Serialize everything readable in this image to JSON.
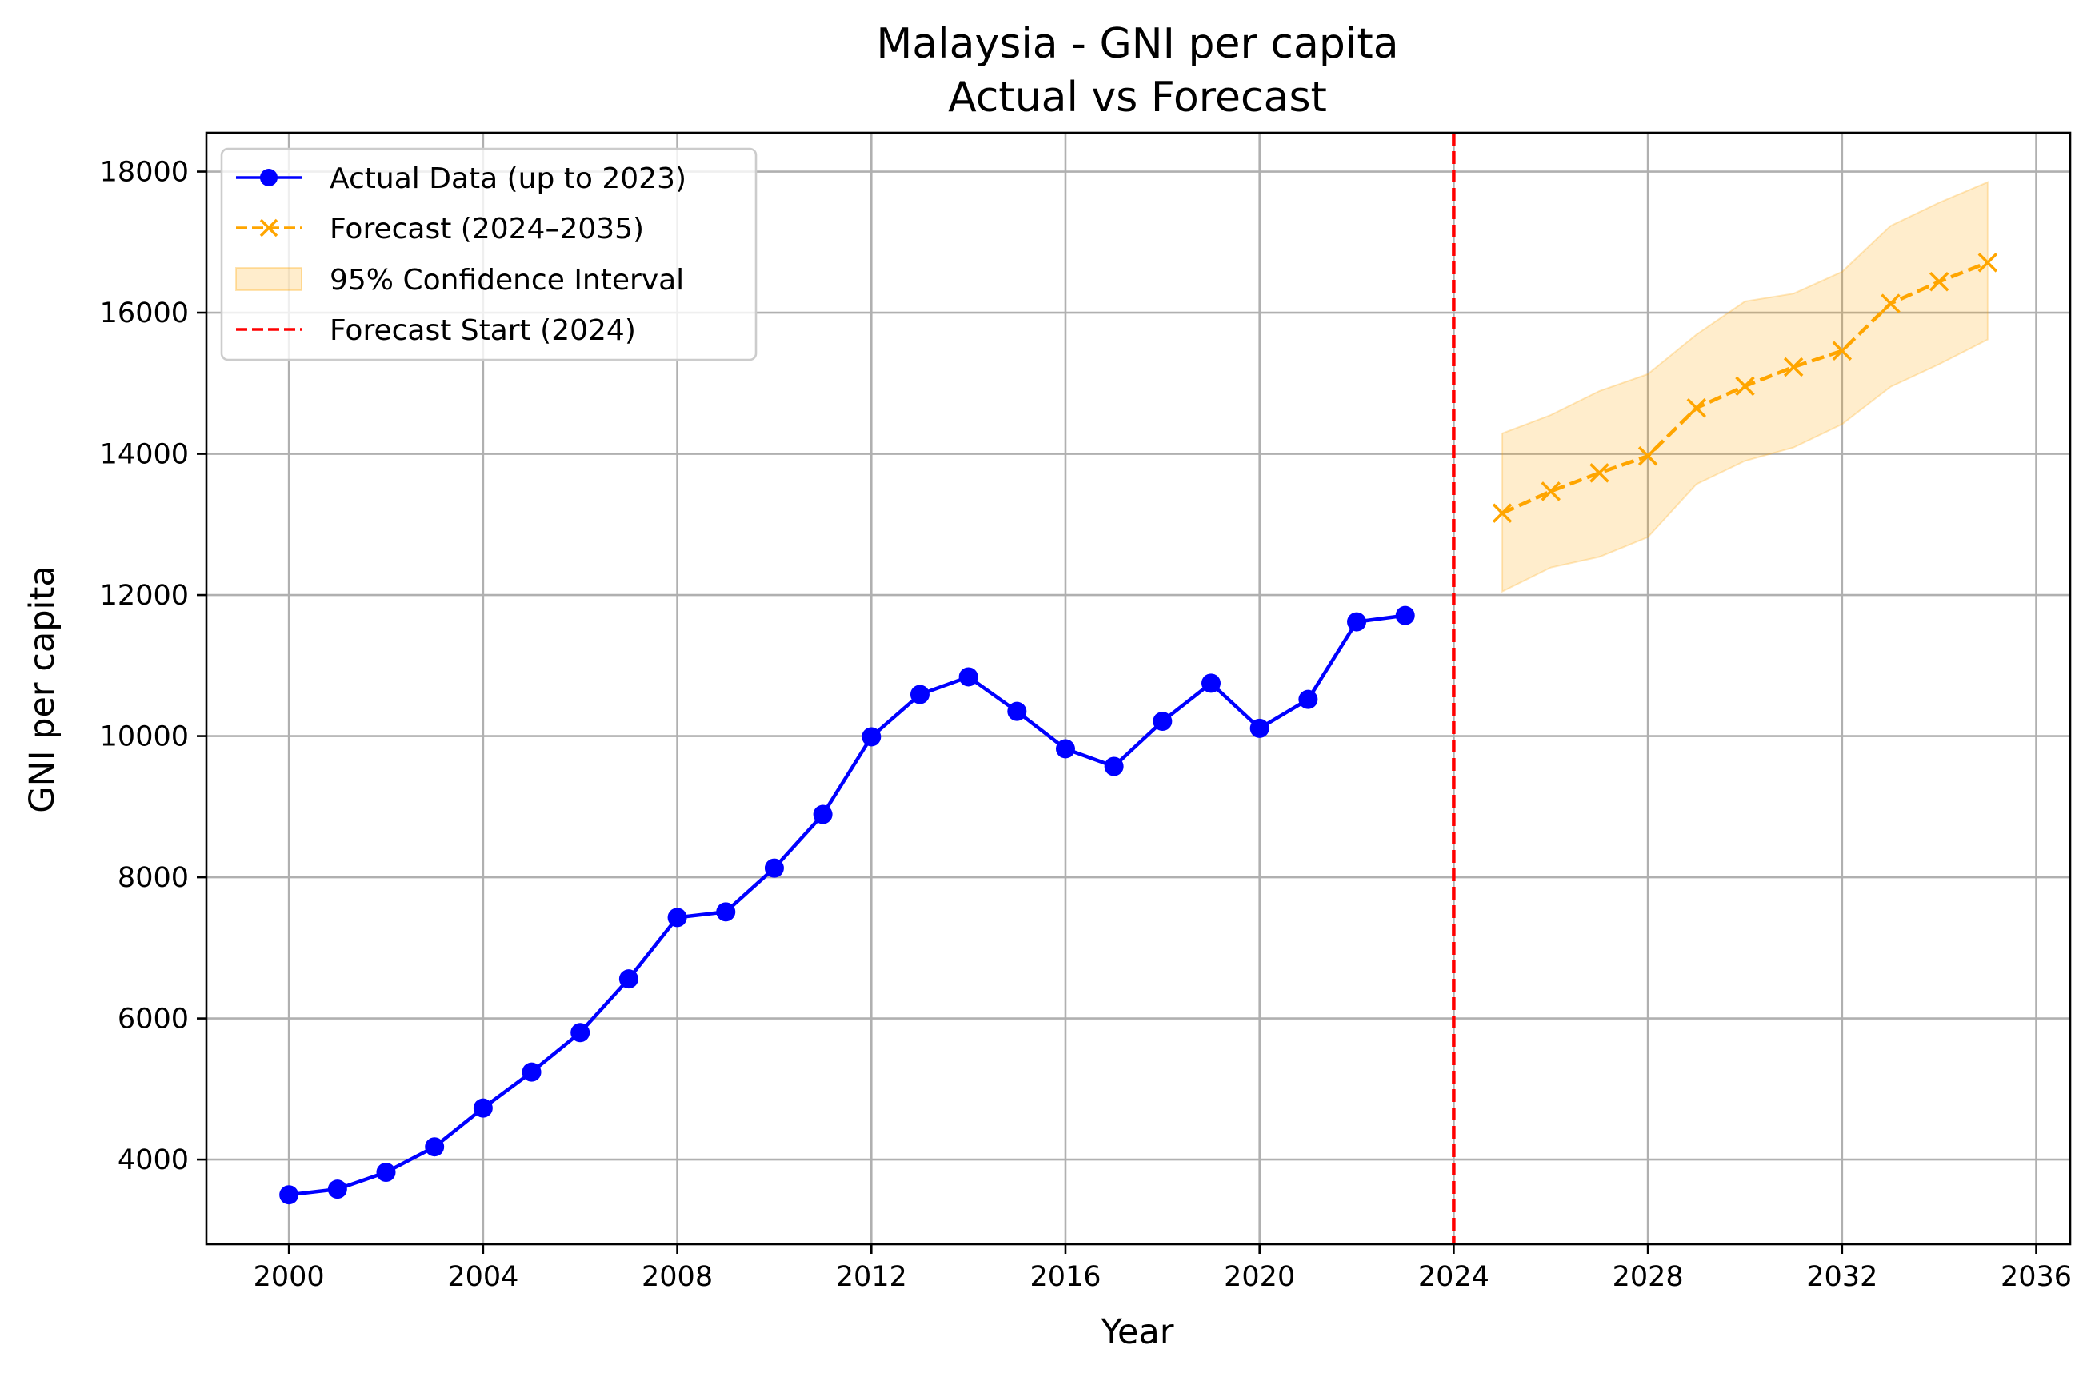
{
  "chart_data": {
    "type": "line",
    "title": "Malaysia - GNI per capita",
    "subtitle": "Actual vs Forecast",
    "xlabel": "Year",
    "ylabel": "GNI per capita",
    "xlim": [
      1998.3,
      2036.7
    ],
    "ylim": [
      2800,
      18550
    ],
    "x_ticks": [
      2000,
      2004,
      2008,
      2012,
      2016,
      2020,
      2024,
      2028,
      2032,
      2036
    ],
    "y_ticks": [
      4000,
      6000,
      8000,
      10000,
      12000,
      14000,
      16000,
      18000
    ],
    "grid": true,
    "legend_position": "top-left",
    "series": [
      {
        "name": "Actual Data (up to 2023)",
        "color": "#0000ff",
        "style": "solid",
        "marker": "circle",
        "x": [
          2000,
          2001,
          2002,
          2003,
          2004,
          2005,
          2006,
          2007,
          2008,
          2009,
          2010,
          2011,
          2012,
          2013,
          2014,
          2015,
          2016,
          2017,
          2018,
          2019,
          2020,
          2021,
          2022,
          2023
        ],
        "y": [
          3500,
          3580,
          3820,
          4180,
          4730,
          5240,
          5800,
          6560,
          7430,
          7510,
          8130,
          8890,
          9990,
          10590,
          10840,
          10350,
          9820,
          9570,
          10210,
          10750,
          10110,
          10520,
          11620,
          11710
        ]
      },
      {
        "name": "Forecast (2024–2035)",
        "color": "#ffa500",
        "style": "dashed",
        "marker": "x",
        "x": [
          2025,
          2026,
          2027,
          2028,
          2029,
          2030,
          2031,
          2032,
          2033,
          2034,
          2035
        ],
        "y": [
          13160,
          13470,
          13730,
          13970,
          14650,
          14960,
          15230,
          15460,
          16130,
          16440,
          16710
        ]
      }
    ],
    "confidence_interval": {
      "name": "95% Confidence Interval",
      "color": "#ffa500",
      "x": [
        2025,
        2026,
        2027,
        2028,
        2029,
        2030,
        2031,
        2032,
        2033,
        2034,
        2035
      ],
      "lower": [
        12050,
        12390,
        12540,
        12820,
        13570,
        13900,
        14090,
        14420,
        14950,
        15270,
        15620
      ],
      "upper": [
        14290,
        14550,
        14890,
        15130,
        15690,
        16160,
        16270,
        16580,
        17230,
        17560,
        17850
      ]
    },
    "forecast_start": {
      "name": "Forecast Start (2024)",
      "x": 2024,
      "color": "#ff0000",
      "style": "dashed"
    }
  }
}
